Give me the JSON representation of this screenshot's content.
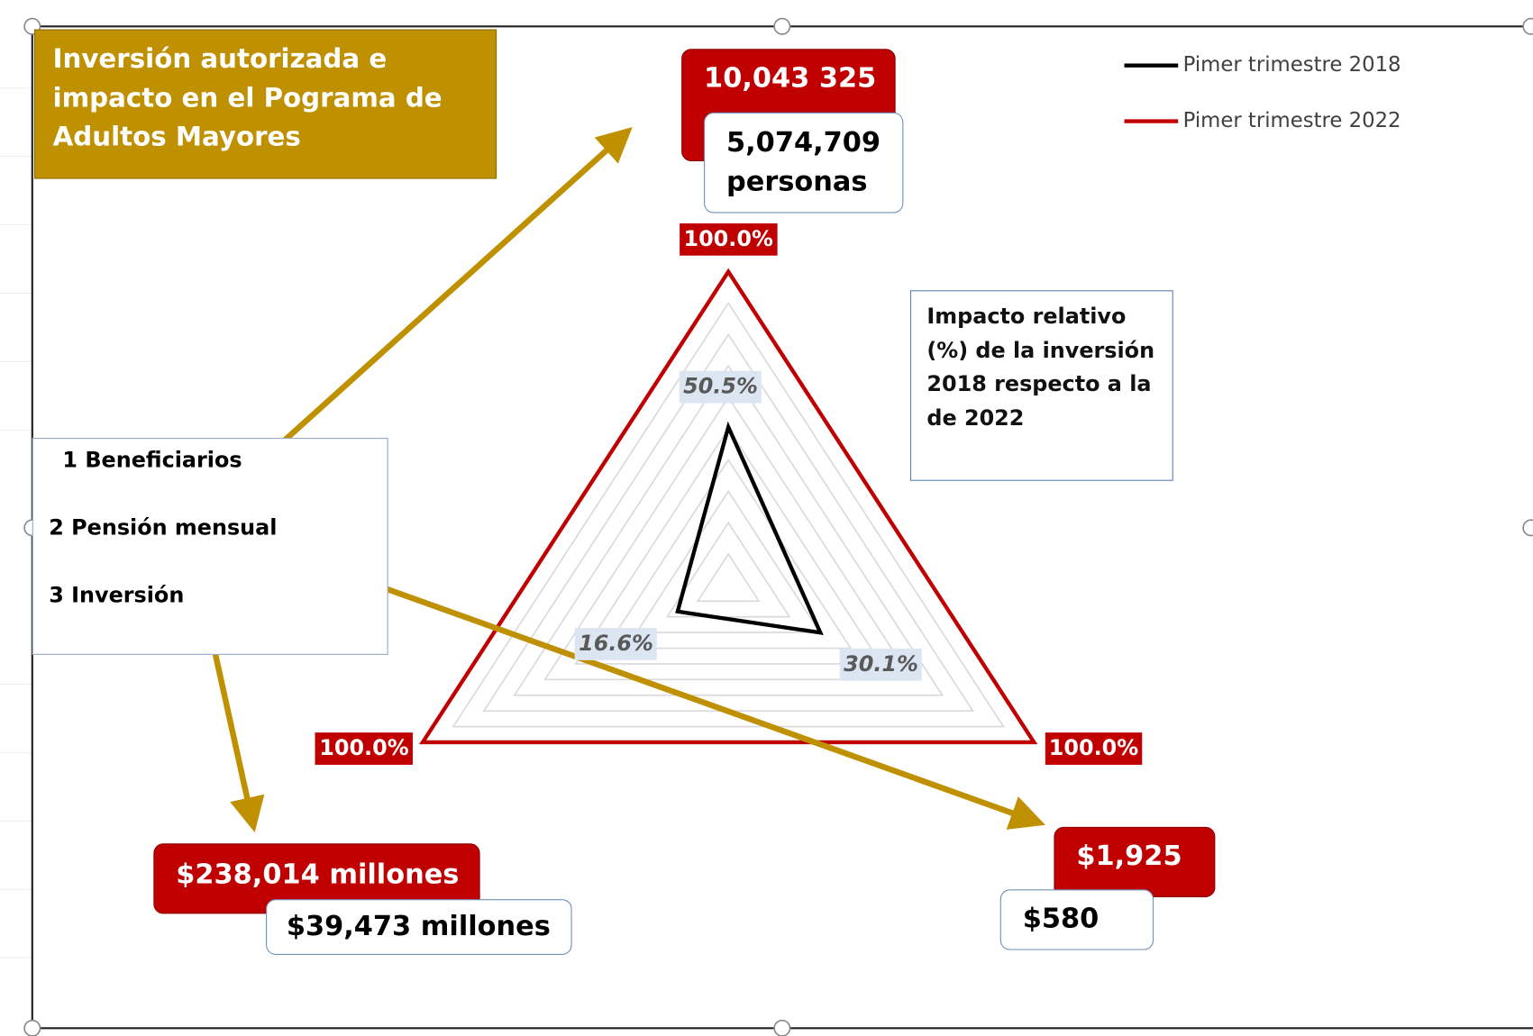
{
  "chart_data": {
    "type": "radar",
    "title": "Inversión autorizada e impacto en el Pograma de Adultos Mayores",
    "categories": [
      "1  Beneficiarios",
      "2 Pensión mensual",
      "3 Inversión"
    ],
    "series": [
      {
        "name": "Pimer trimestre 2018",
        "color": "#000000",
        "values": [
          50.5,
          30.1,
          16.6
        ],
        "value_labels": [
          "50.5%",
          "30.1%",
          "16.6%"
        ]
      },
      {
        "name": "Pimer trimestre 2022",
        "color": "#c00000",
        "values": [
          100,
          100,
          100
        ],
        "value_labels": [
          "100.0%",
          "100.0%",
          "100.0%"
        ]
      }
    ],
    "rlim": [
      0,
      100
    ],
    "rticks": [
      0,
      10,
      20,
      30,
      40,
      50,
      60,
      70,
      80,
      90,
      100
    ],
    "grid": true,
    "legend": "top-right",
    "note": "Impacto relativo (%) de la inversión 2018 respecto a la de 2022",
    "callouts": [
      {
        "value_2022": "10,043 325",
        "value_2018": "5,074,709 personas"
      },
      {
        "value_2022": "$1,925",
        "value_2018": "$580"
      },
      {
        "value_2022": "$238,014 millones",
        "value_2018": "$39,473 millones"
      }
    ]
  }
}
